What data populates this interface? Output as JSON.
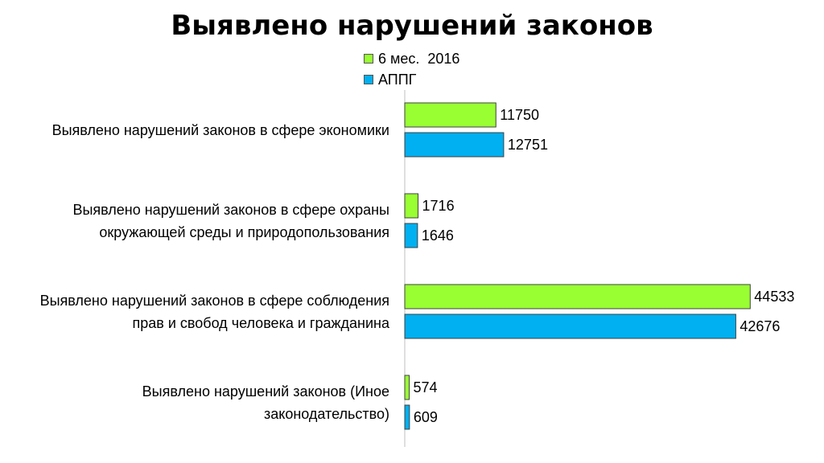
{
  "chart_data": {
    "type": "bar",
    "orientation": "horizontal",
    "title": "Выявлено нарушений законов",
    "categories": [
      [
        "Выявлено нарушений законов в сфере экономики"
      ],
      [
        "Выявлено нарушений законов в сфере охраны",
        "окружающей среды и природопользования"
      ],
      [
        "Выявлено нарушений законов в сфере соблюдения",
        "прав и свобод человека и гражданина"
      ],
      [
        "Выявлено нарушений законов (Иное",
        "законодательство)"
      ]
    ],
    "series": [
      {
        "name": "6 мес.  2016",
        "color": "#99ff33",
        "values": [
          11750,
          1716,
          44533,
          574
        ]
      },
      {
        "name": "АППГ",
        "color": "#00b0f0",
        "values": [
          12751,
          1646,
          42676,
          609
        ]
      }
    ],
    "xlim": [
      0,
      50000
    ],
    "legend_position": "top",
    "grid": false
  }
}
